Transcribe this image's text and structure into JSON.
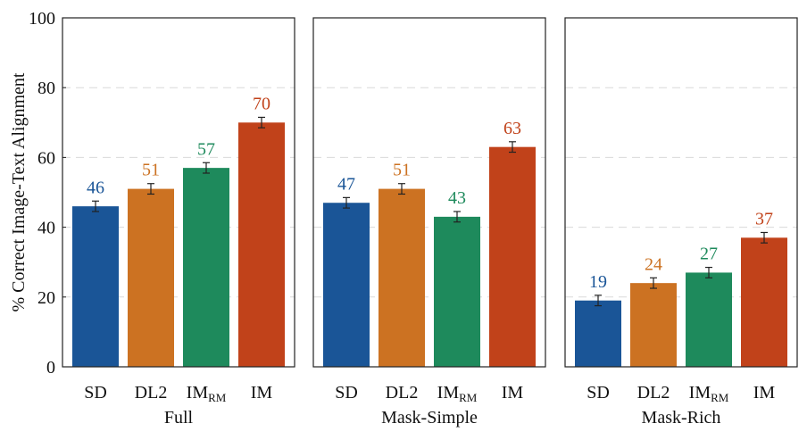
{
  "chart_data": {
    "type": "bar",
    "ylabel": "% Correct Image-Text Alignment",
    "ylim": [
      0,
      100
    ],
    "yticks": [
      0,
      20,
      40,
      60,
      80,
      100
    ],
    "grid": true,
    "categories": [
      {
        "main": "SD",
        "sub": ""
      },
      {
        "main": "DL2",
        "sub": ""
      },
      {
        "main": "IM",
        "sub": "RM"
      },
      {
        "main": "IM",
        "sub": ""
      }
    ],
    "colors": [
      "#1a5597",
      "#cc7222",
      "#1e8a5c",
      "#c1421a"
    ],
    "panels": [
      {
        "name": "Full",
        "values": [
          46,
          51,
          57,
          70
        ],
        "errors": [
          1.5,
          1.5,
          1.5,
          1.5
        ]
      },
      {
        "name": "Mask-Simple",
        "values": [
          47,
          51,
          43,
          63
        ],
        "errors": [
          1.5,
          1.5,
          1.5,
          1.5
        ]
      },
      {
        "name": "Mask-Rich",
        "values": [
          19,
          24,
          27,
          37
        ],
        "errors": [
          1.5,
          1.5,
          1.5,
          1.5
        ]
      }
    ]
  }
}
